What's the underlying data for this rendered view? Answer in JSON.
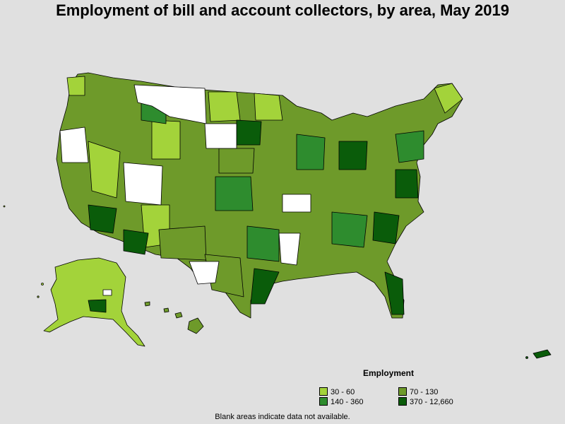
{
  "title": "Employment of bill and account collectors, by area, May 2019",
  "legend": {
    "title": "Employment",
    "items": [
      {
        "label": "30 - 60",
        "color": "#a3d33a"
      },
      {
        "label": "70 - 130",
        "color": "#6e9a2a"
      },
      {
        "label": "140 - 360",
        "color": "#2e8c2e"
      },
      {
        "label": "370 - 12,660",
        "color": "#0a5c0a"
      }
    ]
  },
  "footnote": "Blank areas indicate data not available.",
  "colors": {
    "background": "#e0e0e0",
    "no_data": "#ffffff",
    "border": "#000000"
  }
}
